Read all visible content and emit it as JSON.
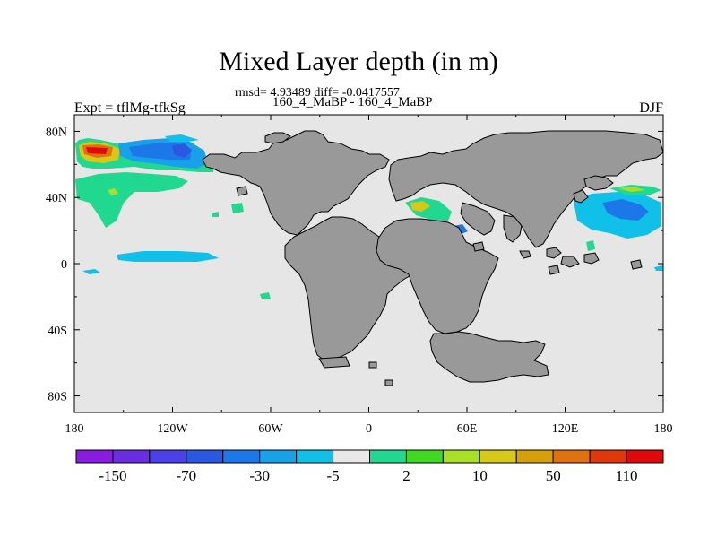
{
  "figure": {
    "title": "Mixed Layer depth (in m)",
    "stats": "rmsd= 4.93489 diff= -0.0417557",
    "runs": "160_4_MaBP - 160_4_MaBP",
    "experiment": "Expt = tflMg-tfkSg",
    "season": "DJF"
  },
  "map": {
    "projection": "cylindrical equidistant",
    "lon_range": [
      -180,
      180
    ],
    "lat_range": [
      -90,
      90
    ],
    "lon_tick_labels": [
      "180",
      "120W",
      "60W",
      "0",
      "60E",
      "120E",
      "180"
    ],
    "lon_tick_values": [
      -180,
      -120,
      -60,
      0,
      60,
      120,
      180
    ],
    "lat_tick_labels": [
      "80N",
      "40N",
      "0",
      "40S",
      "80S"
    ],
    "lat_tick_values": [
      80,
      40,
      0,
      -40,
      -80
    ],
    "ocean_color": "#e6e6e6",
    "land_color": "#999999",
    "coastline_color": "#000000"
  },
  "colorbar": {
    "labels": [
      "-150",
      "-70",
      "-30",
      "-5",
      "2",
      "10",
      "50",
      "110"
    ],
    "colors": [
      "#8a1ce0",
      "#6a2ee0",
      "#4c40e8",
      "#2a58e0",
      "#1c78e8",
      "#18a0e8",
      "#10c0e8",
      "#e8e8e8",
      "#20d890",
      "#40d820",
      "#a8e028",
      "#d8c818",
      "#d8a008",
      "#e07010",
      "#e03808",
      "#e00808"
    ]
  }
}
